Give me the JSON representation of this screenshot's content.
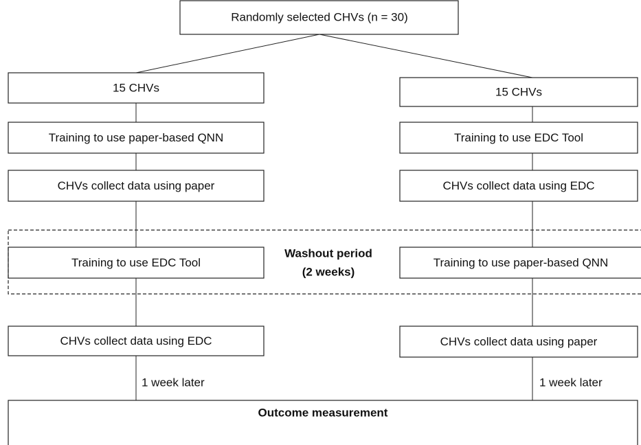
{
  "title": "Randomly selected CHVs (n = 30)",
  "left": [
    "15 CHVs",
    "Training to use paper-based QNN",
    "CHVs collect data using paper",
    "Training to use EDC Tool",
    "CHVs collect data using EDC",
    "1 week later"
  ],
  "right": [
    "15 CHVs",
    "Training to use EDC Tool",
    "CHVs collect data using EDC",
    "Training to use paper-based QNN",
    "CHVs collect data using paper",
    "1 week later"
  ],
  "washout": {
    "label": "Washout period",
    "duration": "(2 weeks)"
  },
  "outcome": "Outcome measurement"
}
